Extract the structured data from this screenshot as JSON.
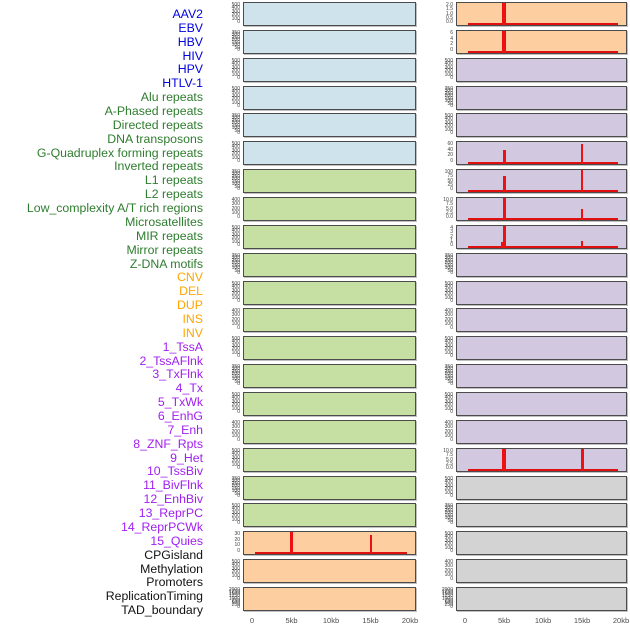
{
  "figure_title": "",
  "colors": {
    "panel_blue": "#cfe3ec",
    "panel_green": "#c6dfa2",
    "panel_orange": "#fdcfa0",
    "panel_purple": "#d2c9e1",
    "panel_gray": "#d3d3d3",
    "label_blue": "#0000dd",
    "label_green": "#2e7d2e",
    "label_orange": "#ffa500",
    "label_purple": "#a020f0",
    "label_black": "#111111",
    "spike_red": "#ee1111",
    "baseline_red": "#e01010",
    "panel_border": "#4b4b4b",
    "tick_text": "#3f3f3f",
    "axis_text": "#4d4d4d"
  },
  "chart_data": {
    "type": "bar",
    "layout": "small-multiples, 22 rows x 2 columns, one mini bar panel per track",
    "x_axis": {
      "ticks": [
        "0",
        "5kb",
        "10kb",
        "15kb",
        "20kb"
      ],
      "range_kb": [
        0,
        20
      ]
    },
    "note": "red bars mark enriched positions at ~5kb and ~15kb; flat red baseline near 0 elsewhere",
    "tracks": [
      {
        "label": "AAV2",
        "group": "virus",
        "fill": "blue",
        "label_color": "blue",
        "yticks": [
          "500",
          "400",
          "300",
          "200",
          "100",
          "0"
        ],
        "spikes": [],
        "baseline": false
      },
      {
        "label": "EBV",
        "group": "virus",
        "fill": "blue",
        "label_color": "blue",
        "yticks": [
          "350",
          "300",
          "250",
          "200",
          "150",
          "100",
          "50",
          "0"
        ],
        "spikes": [],
        "baseline": false
      },
      {
        "label": "HBV",
        "group": "virus",
        "fill": "blue",
        "label_color": "blue",
        "yticks": [
          "500",
          "400",
          "300",
          "200",
          "100",
          "0"
        ],
        "spikes": [],
        "baseline": false
      },
      {
        "label": "HIV",
        "group": "virus",
        "fill": "blue",
        "label_color": "blue",
        "yticks": [
          "500",
          "400",
          "300",
          "200",
          "100",
          "0"
        ],
        "spikes": [],
        "baseline": false
      },
      {
        "label": "HPV",
        "group": "virus",
        "fill": "blue",
        "label_color": "blue",
        "yticks": [
          "350",
          "300",
          "250",
          "200",
          "150",
          "100",
          "50",
          "0"
        ],
        "spikes": [],
        "baseline": false
      },
      {
        "label": "HTLV-1",
        "group": "virus",
        "fill": "blue",
        "label_color": "blue",
        "yticks": [
          "500",
          "400",
          "300",
          "200",
          "100",
          "0"
        ],
        "spikes": [],
        "baseline": false
      },
      {
        "label": "Alu repeats",
        "group": "repeat",
        "fill": "green",
        "label_color": "green",
        "yticks": [
          "350",
          "300",
          "250",
          "200",
          "150",
          "100",
          "50",
          "0"
        ],
        "spikes": [],
        "baseline": false
      },
      {
        "label": "A-Phased repeats",
        "group": "repeat",
        "fill": "green",
        "label_color": "green",
        "yticks": [
          "400",
          "300",
          "200",
          "100",
          "0"
        ],
        "spikes": [],
        "baseline": false
      },
      {
        "label": "Directed repeats",
        "group": "repeat",
        "fill": "green",
        "label_color": "green",
        "yticks": [
          "500",
          "400",
          "300",
          "200",
          "100",
          "0"
        ],
        "spikes": [],
        "baseline": false
      },
      {
        "label": "DNA transposons",
        "group": "repeat",
        "fill": "green",
        "label_color": "green",
        "yticks": [
          "350",
          "300",
          "250",
          "200",
          "150",
          "100",
          "50",
          "0"
        ],
        "spikes": [],
        "baseline": false
      },
      {
        "label": "G-Quadruplex forming repeats",
        "group": "repeat",
        "fill": "green",
        "label_color": "green",
        "yticks": [
          "500",
          "400",
          "300",
          "200",
          "100",
          "0"
        ],
        "spikes": [],
        "baseline": false
      },
      {
        "label": "Inverted repeats",
        "group": "repeat",
        "fill": "green",
        "label_color": "green",
        "yticks": [
          "400",
          "300",
          "200",
          "100",
          "0"
        ],
        "spikes": [],
        "baseline": false
      },
      {
        "label": "L1 repeats",
        "group": "repeat",
        "fill": "green",
        "label_color": "green",
        "yticks": [
          "500",
          "400",
          "300",
          "200",
          "100",
          "0"
        ],
        "spikes": [],
        "baseline": false
      },
      {
        "label": "L2 repeats",
        "group": "repeat",
        "fill": "green",
        "label_color": "green",
        "yticks": [
          "350",
          "300",
          "250",
          "200",
          "150",
          "100",
          "50",
          "0"
        ],
        "spikes": [],
        "baseline": false
      },
      {
        "label": "Low_complexity A/T rich regions",
        "group": "repeat",
        "fill": "green",
        "label_color": "green",
        "yticks": [
          "500",
          "400",
          "300",
          "200",
          "100",
          "0"
        ],
        "spikes": [],
        "baseline": false
      },
      {
        "label": "Microsatellites",
        "group": "repeat",
        "fill": "green",
        "label_color": "green",
        "yticks": [
          "400",
          "300",
          "200",
          "100",
          "0"
        ],
        "spikes": [],
        "baseline": false
      },
      {
        "label": "MIR repeats",
        "group": "repeat",
        "fill": "green",
        "label_color": "green",
        "yticks": [
          "500",
          "400",
          "300",
          "200",
          "100",
          "0"
        ],
        "spikes": [],
        "baseline": false
      },
      {
        "label": "Mirror repeats",
        "group": "repeat",
        "fill": "green",
        "label_color": "green",
        "yticks": [
          "350",
          "300",
          "250",
          "200",
          "150",
          "100",
          "50",
          "0"
        ],
        "spikes": [],
        "baseline": false
      },
      {
        "label": "Z-DNA motifs",
        "group": "repeat",
        "fill": "green",
        "label_color": "green",
        "yticks": [
          "500",
          "400",
          "300",
          "200",
          "100",
          "0"
        ],
        "spikes": [],
        "baseline": false
      },
      {
        "label": "CNV",
        "group": "sv",
        "fill": "orange",
        "label_color": "orange",
        "yticks": [
          "30",
          "20",
          "10",
          "0"
        ],
        "spikes": [
          {
            "x_kb": 5,
            "frac": 1.0,
            "w": 3.5
          },
          {
            "x_kb": 15,
            "frac": 0.85,
            "w": 2
          }
        ],
        "baseline": true,
        "baseline_h": 2
      },
      {
        "label": "DEL",
        "group": "sv",
        "fill": "orange",
        "label_color": "orange",
        "yticks": [
          "500",
          "400",
          "300",
          "200",
          "100",
          "0"
        ],
        "spikes": [],
        "baseline": false
      },
      {
        "label": "DUP",
        "group": "sv",
        "fill": "orange",
        "label_color": "orange",
        "yticks": [
          "2000",
          "1750",
          "1500",
          "1250",
          "1000",
          "750",
          "500",
          "250",
          "0"
        ],
        "spikes": [],
        "baseline": false
      },
      {
        "label": "INS",
        "group": "sv",
        "fill": "orange",
        "label_color": "orange",
        "yticks": [
          "2.0",
          "1.5",
          "1.0",
          "0.5",
          "0.0"
        ],
        "spikes": [
          {
            "x_kb": 5,
            "frac": 1.0,
            "w": 4
          }
        ],
        "baseline": true,
        "baseline_h": 2.4
      },
      {
        "label": "INV",
        "group": "sv",
        "fill": "orange",
        "label_color": "orange",
        "yticks": [
          "6",
          "4",
          "2",
          "0"
        ],
        "spikes": [
          {
            "x_kb": 5,
            "frac": 1.0,
            "w": 4
          }
        ],
        "baseline": true,
        "baseline_h": 2.4
      },
      {
        "label": "1_TssA",
        "group": "chromatin",
        "fill": "purple",
        "label_color": "purple",
        "yticks": [
          "500",
          "400",
          "300",
          "200",
          "100",
          "0"
        ],
        "spikes": [],
        "baseline": false
      },
      {
        "label": "2_TssAFlnk",
        "group": "chromatin",
        "fill": "purple",
        "label_color": "purple",
        "yticks": [
          "350",
          "300",
          "250",
          "200",
          "150",
          "100",
          "50",
          "0"
        ],
        "spikes": [],
        "baseline": false
      },
      {
        "label": "3_TxFlnk",
        "group": "chromatin",
        "fill": "purple",
        "label_color": "purple",
        "yticks": [
          "500",
          "400",
          "300",
          "200",
          "100",
          "0"
        ],
        "spikes": [],
        "baseline": false
      },
      {
        "label": "4_Tx",
        "group": "chromatin",
        "fill": "purple",
        "label_color": "purple",
        "yticks": [
          "60",
          "40",
          "20",
          "0"
        ],
        "spikes": [
          {
            "x_kb": 5,
            "frac": 0.62,
            "w": 3
          },
          {
            "x_kb": 15,
            "frac": 0.93,
            "w": 2.5
          }
        ],
        "baseline": true,
        "baseline_h": 1.6
      },
      {
        "label": "5_TxWk",
        "group": "chromatin",
        "fill": "purple",
        "label_color": "purple",
        "yticks": [
          "100",
          "75",
          "50",
          "25",
          "0"
        ],
        "spikes": [
          {
            "x_kb": 5,
            "frac": 0.75,
            "w": 3
          },
          {
            "x_kb": 15,
            "frac": 1.0,
            "w": 2.5
          }
        ],
        "baseline": true,
        "baseline_h": 1.6
      },
      {
        "label": "6_EnhG",
        "group": "chromatin",
        "fill": "purple",
        "label_color": "purple",
        "yticks": [
          "10.0",
          "7.5",
          "5.0",
          "2.5",
          "0.0"
        ],
        "spikes": [
          {
            "x_kb": 5,
            "frac": 1.0,
            "w": 3
          },
          {
            "x_kb": 15,
            "frac": 0.5,
            "w": 2.5
          }
        ],
        "baseline": true,
        "baseline_h": 1.6
      },
      {
        "label": "7_Enh",
        "group": "chromatin",
        "fill": "purple",
        "label_color": "purple",
        "yticks": [
          "4",
          "3",
          "2",
          "1",
          "0"
        ],
        "spikes": [
          {
            "x_kb": 4.7,
            "frac": 0.28,
            "w": 2
          },
          {
            "x_kb": 5,
            "frac": 1.0,
            "w": 3
          },
          {
            "x_kb": 15,
            "frac": 0.33,
            "w": 2.5
          }
        ],
        "baseline": true,
        "baseline_h": 1.6
      },
      {
        "label": "8_ZNF_Rpts",
        "group": "chromatin",
        "fill": "purple",
        "label_color": "purple",
        "yticks": [
          "350",
          "300",
          "250",
          "200",
          "150",
          "100",
          "50",
          "0"
        ],
        "spikes": [],
        "baseline": false
      },
      {
        "label": "9_Het",
        "group": "chromatin",
        "fill": "purple",
        "label_color": "purple",
        "yticks": [
          "500",
          "400",
          "300",
          "200",
          "100",
          "0"
        ],
        "spikes": [],
        "baseline": false
      },
      {
        "label": "10_TssBiv",
        "group": "chromatin",
        "fill": "purple",
        "label_color": "purple",
        "yticks": [
          "400",
          "300",
          "200",
          "100",
          "0"
        ],
        "spikes": [],
        "baseline": false
      },
      {
        "label": "11_BivFlnk",
        "group": "chromatin",
        "fill": "purple",
        "label_color": "purple",
        "yticks": [
          "500",
          "400",
          "300",
          "200",
          "100",
          "0"
        ],
        "spikes": [],
        "baseline": false
      },
      {
        "label": "12_EnhBiv",
        "group": "chromatin",
        "fill": "purple",
        "label_color": "purple",
        "yticks": [
          "350",
          "300",
          "250",
          "200",
          "150",
          "100",
          "50",
          "0"
        ],
        "spikes": [],
        "baseline": false
      },
      {
        "label": "13_ReprPC",
        "group": "chromatin",
        "fill": "purple",
        "label_color": "purple",
        "yticks": [
          "500",
          "400",
          "300",
          "200",
          "100",
          "0"
        ],
        "spikes": [],
        "baseline": false
      },
      {
        "label": "14_ReprPCWk",
        "group": "chromatin",
        "fill": "purple",
        "label_color": "purple",
        "yticks": [
          "400",
          "300",
          "200",
          "100",
          "0"
        ],
        "spikes": [],
        "baseline": false
      },
      {
        "label": "15_Quies",
        "group": "chromatin",
        "fill": "purple",
        "label_color": "purple",
        "yticks": [
          "10.0",
          "7.5",
          "5.0",
          "2.5",
          "0.0"
        ],
        "spikes": [
          {
            "x_kb": 5,
            "frac": 1.0,
            "w": 3.5
          },
          {
            "x_kb": 15,
            "frac": 1.0,
            "w": 3
          }
        ],
        "baseline": true,
        "baseline_h": 1.6
      },
      {
        "label": "CPGisland",
        "group": "other",
        "fill": "gray",
        "label_color": "black",
        "yticks": [
          "500",
          "400",
          "300",
          "200",
          "100",
          "0"
        ],
        "spikes": [],
        "baseline": false
      },
      {
        "label": "Methylation",
        "group": "other",
        "fill": "gray",
        "label_color": "black",
        "yticks": [
          "350",
          "300",
          "250",
          "200",
          "150",
          "100",
          "50",
          "0"
        ],
        "spikes": [],
        "baseline": false
      },
      {
        "label": "Promoters",
        "group": "other",
        "fill": "gray",
        "label_color": "black",
        "yticks": [
          "500",
          "400",
          "300",
          "200",
          "100",
          "0"
        ],
        "spikes": [],
        "baseline": false
      },
      {
        "label": "ReplicationTiming",
        "group": "other",
        "fill": "gray",
        "label_color": "black",
        "yticks": [
          "400",
          "300",
          "200",
          "100",
          "0"
        ],
        "spikes": [],
        "baseline": false
      },
      {
        "label": "TAD_boundary",
        "group": "other",
        "fill": "gray",
        "label_color": "black",
        "yticks": [
          "2000",
          "1750",
          "1500",
          "1250",
          "1000",
          "750",
          "500",
          "250",
          "0"
        ],
        "spikes": [],
        "baseline": false
      }
    ]
  }
}
